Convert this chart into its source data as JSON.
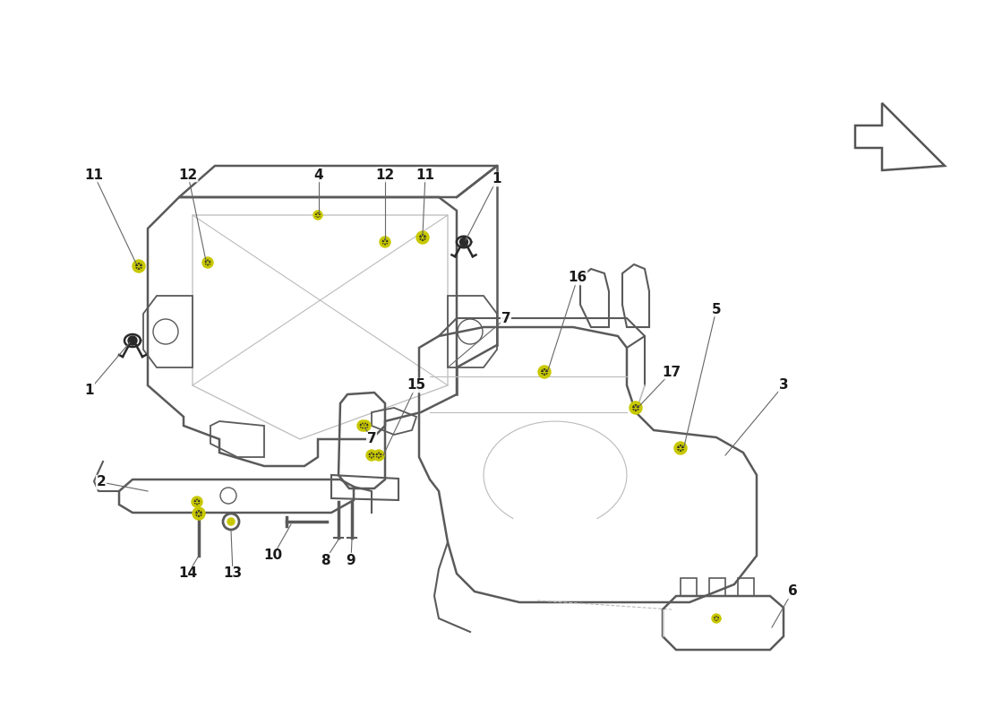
{
  "background_color": "#ffffff",
  "line_color": "#5a5a5a",
  "light_line_color": "#bbbbbb",
  "label_color": "#1a1a1a",
  "fastener_color": "#c8c800",
  "fastener_dark": "#2a2a2a",
  "fig_width": 11.0,
  "fig_height": 8.0,
  "dpi": 100,
  "xlim": [
    0,
    1100
  ],
  "ylim": [
    800,
    0
  ]
}
